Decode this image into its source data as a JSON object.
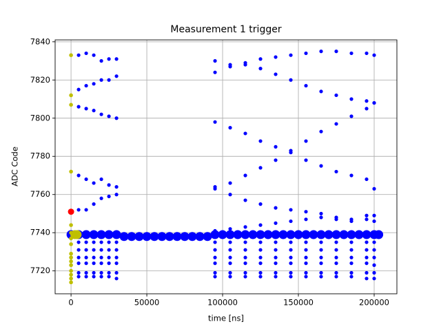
{
  "chart_data": {
    "type": "scatter",
    "title": "Measurement 1 trigger",
    "x_label": "time [ns]",
    "y_label": "ADC Code",
    "xlim": [
      -10500,
      215000
    ],
    "ylim": [
      7708,
      7841
    ],
    "xticks": [
      0,
      50000,
      100000,
      150000,
      200000
    ],
    "yticks": [
      7720,
      7740,
      7760,
      7780,
      7800,
      7820,
      7840
    ],
    "grid": true,
    "series": [
      {
        "color": "#0000ff",
        "x": [
          5000,
          10000,
          15000,
          20000,
          25000,
          30000,
          5000,
          10000,
          15000,
          20000,
          25000,
          30000,
          5000,
          10000,
          15000,
          20000,
          25000,
          30000,
          5000,
          10000,
          15000,
          20000,
          25000,
          30000,
          5000,
          10000,
          15000,
          20000,
          25000,
          30000,
          5000,
          10000,
          15000,
          20000,
          25000,
          30000,
          5000,
          10000,
          15000,
          20000,
          25000,
          30000,
          5000,
          10000,
          15000,
          20000,
          25000,
          30000,
          5000,
          10000,
          15000,
          20000,
          25000,
          30000,
          5000,
          10000,
          15000,
          20000,
          25000,
          30000,
          5000,
          10000,
          15000,
          20000,
          25000,
          30000
        ],
        "values": [
          7833,
          7834,
          7833,
          7830,
          7831,
          7831,
          7815,
          7817,
          7818,
          7820,
          7820,
          7822,
          7806,
          7805,
          7804,
          7802,
          7801,
          7800,
          7770,
          7768,
          7766,
          7768,
          7765,
          7764,
          7752,
          7752,
          7755,
          7758,
          7759,
          7760,
          7735,
          7735,
          7735,
          7735,
          7735,
          7735,
          7731,
          7731,
          7731,
          7731,
          7731,
          7731,
          7727,
          7727,
          7727,
          7727,
          7727,
          7727,
          7724,
          7724,
          7724,
          7724,
          7724,
          7724,
          7719,
          7719,
          7719,
          7719,
          7719,
          7719,
          7717,
          7717,
          7717,
          7717,
          7717,
          7716
        ]
      },
      {
        "color": "#0000ff",
        "x": [
          95000,
          105000,
          115000,
          125000,
          135000,
          145000,
          155000,
          165000,
          175000,
          185000,
          195000,
          200000,
          95000,
          105000,
          115000,
          125000,
          135000,
          145000,
          155000,
          165000,
          175000,
          185000,
          195000,
          200000,
          95000,
          105000,
          115000,
          125000,
          135000,
          145000,
          155000,
          165000,
          175000,
          185000,
          195000,
          200000,
          95000,
          105000,
          115000,
          125000,
          135000,
          145000,
          155000,
          165000,
          175000,
          185000,
          195000,
          200000,
          95000,
          105000,
          115000,
          125000,
          135000,
          145000,
          155000,
          165000,
          175000,
          185000,
          195000,
          200000,
          95000,
          105000,
          115000,
          125000,
          135000,
          145000,
          155000,
          165000,
          175000,
          185000,
          195000,
          200000,
          95000,
          105000,
          115000,
          125000,
          135000,
          145000,
          155000,
          165000,
          175000,
          185000,
          195000,
          200000,
          95000,
          105000,
          115000,
          125000,
          135000,
          145000,
          155000,
          165000,
          175000,
          185000,
          195000,
          200000,
          95000,
          105000,
          115000,
          125000,
          135000,
          145000,
          155000,
          165000,
          175000,
          185000,
          195000,
          200000,
          95000,
          105000,
          115000,
          125000,
          135000,
          145000,
          155000,
          165000,
          175000,
          185000,
          195000,
          200000,
          95000,
          105000,
          115000,
          125000,
          135000,
          145000,
          155000,
          165000,
          175000,
          185000,
          195000,
          200000,
          95000,
          105000,
          115000,
          125000,
          135000,
          145000,
          155000,
          165000,
          175000,
          185000,
          195000,
          200000
        ],
        "values": [
          7830,
          7828,
          7829,
          7831,
          7832,
          7833,
          7834,
          7835,
          7835,
          7834,
          7834,
          7833,
          7824,
          7827,
          7828,
          7826,
          7823,
          7820,
          7817,
          7814,
          7812,
          7810,
          7809,
          7808,
          7798,
          7795,
          7792,
          7788,
          7785,
          7782,
          7778,
          7775,
          7772,
          7770,
          7768,
          7763,
          7764,
          7766,
          7770,
          7774,
          7778,
          7783,
          7788,
          7793,
          7797,
          7801,
          7805,
          7808,
          7763,
          7760,
          7757,
          7755,
          7753,
          7752,
          7751,
          7750,
          7748,
          7747,
          7747,
          7746,
          7741,
          7742,
          7743,
          7744,
          7745,
          7746,
          7747,
          7748,
          7747,
          7746,
          7749,
          7749,
          7735,
          7735,
          7735,
          7735,
          7735,
          7735,
          7735,
          7735,
          7735,
          7735,
          7735,
          7735,
          7731,
          7731,
          7731,
          7731,
          7731,
          7731,
          7731,
          7731,
          7731,
          7731,
          7731,
          7731,
          7727,
          7727,
          7727,
          7727,
          7727,
          7727,
          7727,
          7727,
          7727,
          7727,
          7727,
          7727,
          7724,
          7724,
          7724,
          7724,
          7724,
          7724,
          7724,
          7724,
          7724,
          7724,
          7724,
          7723,
          7719,
          7719,
          7719,
          7719,
          7719,
          7719,
          7719,
          7719,
          7719,
          7719,
          7719,
          7719,
          7717,
          7717,
          7717,
          7717,
          7717,
          7717,
          7717,
          7717,
          7717,
          7717,
          7716,
          7716
        ]
      },
      {
        "color": "#0000ff",
        "x": [
          0,
          5000,
          10000,
          15000,
          20000,
          25000,
          30000,
          35000,
          40000,
          45000,
          50000,
          55000,
          60000,
          65000,
          70000,
          75000,
          80000,
          85000,
          90000,
          95000,
          100000,
          105000,
          110000,
          115000,
          120000,
          125000,
          130000,
          135000,
          140000,
          145000,
          150000,
          155000,
          160000,
          165000,
          170000,
          175000,
          180000,
          185000,
          190000,
          195000,
          200000,
          203000
        ],
        "values": [
          7739,
          7739,
          7739,
          7739,
          7739,
          7739,
          7739,
          7738,
          7738,
          7738,
          7738,
          7738,
          7738,
          7738,
          7738,
          7738,
          7738,
          7738,
          7738,
          7739,
          7739,
          7739,
          7739,
          7739,
          7739,
          7739,
          7739,
          7739,
          7739,
          7739,
          7739,
          7739,
          7739,
          7739,
          7739,
          7739,
          7739,
          7739,
          7739,
          7739,
          7739,
          7739
        ]
      },
      {
        "color": "#bfbf00",
        "x": [
          0,
          0,
          0,
          0,
          0,
          0,
          0,
          0,
          0,
          0,
          0,
          0,
          0,
          0,
          0,
          0
        ],
        "values": [
          7833,
          7812,
          7807,
          7772,
          7744,
          7740,
          7737,
          7734,
          7729,
          7727,
          7725,
          7723,
          7720,
          7718,
          7716,
          7714
        ]
      },
      {
        "color": "#bfbf00",
        "x": [
          2500,
          4000
        ],
        "values": [
          7739,
          7739
        ]
      },
      {
        "color": "#ff0000",
        "x": [
          0
        ],
        "values": [
          7751
        ]
      }
    ]
  }
}
